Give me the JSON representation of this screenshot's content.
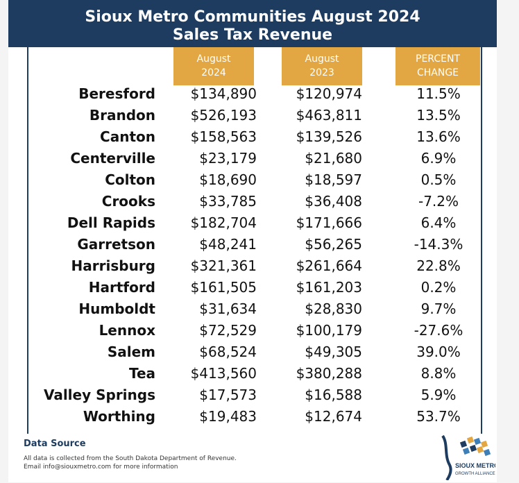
{
  "header": {
    "title_line1": "Sioux Metro Communities August 2024",
    "title_line2": "Sales Tax Revenue"
  },
  "columns": {
    "aug2024_l1": "August",
    "aug2024_l2": "2024",
    "aug2023_l1": "August",
    "aug2023_l2": "2023",
    "pct_l1": "PERCENT",
    "pct_l2": "CHANGE"
  },
  "rows": [
    {
      "name": "Beresford",
      "aug2024": "$134,890",
      "aug2023": "$120,974",
      "pct": "11.5%"
    },
    {
      "name": "Brandon",
      "aug2024": "$526,193",
      "aug2023": "$463,811",
      "pct": "13.5%"
    },
    {
      "name": "Canton",
      "aug2024": "$158,563",
      "aug2023": "$139,526",
      "pct": "13.6%"
    },
    {
      "name": "Centerville",
      "aug2024": "$23,179",
      "aug2023": "$21,680",
      "pct": "6.9%"
    },
    {
      "name": "Colton",
      "aug2024": "$18,690",
      "aug2023": "$18,597",
      "pct": "0.5%"
    },
    {
      "name": "Crooks",
      "aug2024": "$33,785",
      "aug2023": "$36,408",
      "pct": "-7.2%"
    },
    {
      "name": "Dell Rapids",
      "aug2024": "$182,704",
      "aug2023": "$171,666",
      "pct": "6.4%"
    },
    {
      "name": "Garretson",
      "aug2024": "$48,241",
      "aug2023": "$56,265",
      "pct": "-14.3%"
    },
    {
      "name": "Harrisburg",
      "aug2024": "$321,361",
      "aug2023": "$261,664",
      "pct": "22.8%"
    },
    {
      "name": "Hartford",
      "aug2024": "$161,505",
      "aug2023": "$161,203",
      "pct": "0.2%"
    },
    {
      "name": "Humboldt",
      "aug2024": "$31,634",
      "aug2023": "$28,830",
      "pct": "9.7%"
    },
    {
      "name": "Lennox",
      "aug2024": "$72,529",
      "aug2023": "$100,179",
      "pct": "-27.6%"
    },
    {
      "name": "Salem",
      "aug2024": "$68,524",
      "aug2023": "$49,305",
      "pct": "39.0%"
    },
    {
      "name": "Tea",
      "aug2024": "$413,560",
      "aug2023": "$380,288",
      "pct": "8.8%"
    },
    {
      "name": "Valley Springs",
      "aug2024": "$17,573",
      "aug2023": "$16,588",
      "pct": "5.9%"
    },
    {
      "name": "Worthing",
      "aug2024": "$19,483",
      "aug2023": "$12,674",
      "pct": "53.7%"
    }
  ],
  "footer": {
    "source_title": "Data Source",
    "note1": "All data is collected from the South Dakota Department of Revenue.",
    "note2": "Email info@siouxmetro.com for more information",
    "logo_name": "SIOUX METRO",
    "logo_sub": "GROWTH ALLIANCE"
  },
  "colors": {
    "navy": "#1d3c60",
    "gold": "#e2a742"
  }
}
